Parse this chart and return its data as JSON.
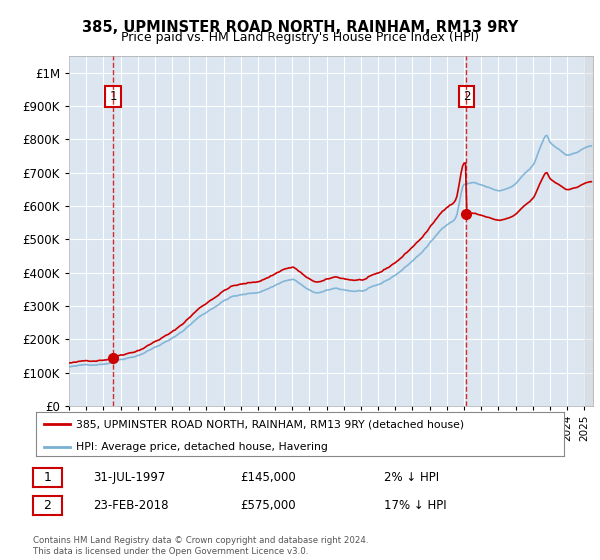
{
  "title": "385, UPMINSTER ROAD NORTH, RAINHAM, RM13 9RY",
  "subtitle": "Price paid vs. HM Land Registry's House Price Index (HPI)",
  "legend_line1": "385, UPMINSTER ROAD NORTH, RAINHAM, RM13 9RY (detached house)",
  "legend_line2": "HPI: Average price, detached house, Havering",
  "annotation1_label": "1",
  "annotation1_date": "31-JUL-1997",
  "annotation1_price": "£145,000",
  "annotation1_hpi": "2% ↓ HPI",
  "annotation2_label": "2",
  "annotation2_date": "23-FEB-2018",
  "annotation2_price": "£575,000",
  "annotation2_hpi": "17% ↓ HPI",
  "footnote": "Contains HM Land Registry data © Crown copyright and database right 2024.\nThis data is licensed under the Open Government Licence v3.0.",
  "background_color": "white",
  "plot_bg_color": "#dce6f1",
  "red_line_color": "#cc0000",
  "blue_line_color": "#7ab0d4",
  "marker_color": "#cc0000",
  "dashed_line_color": "#cc0000",
  "ylim": [
    0,
    1050000
  ],
  "xlim_start": 1995.0,
  "xlim_end": 2025.5,
  "purchase1_x": 1997.58,
  "purchase1_y": 145000,
  "purchase2_x": 2018.14,
  "purchase2_y": 575000
}
